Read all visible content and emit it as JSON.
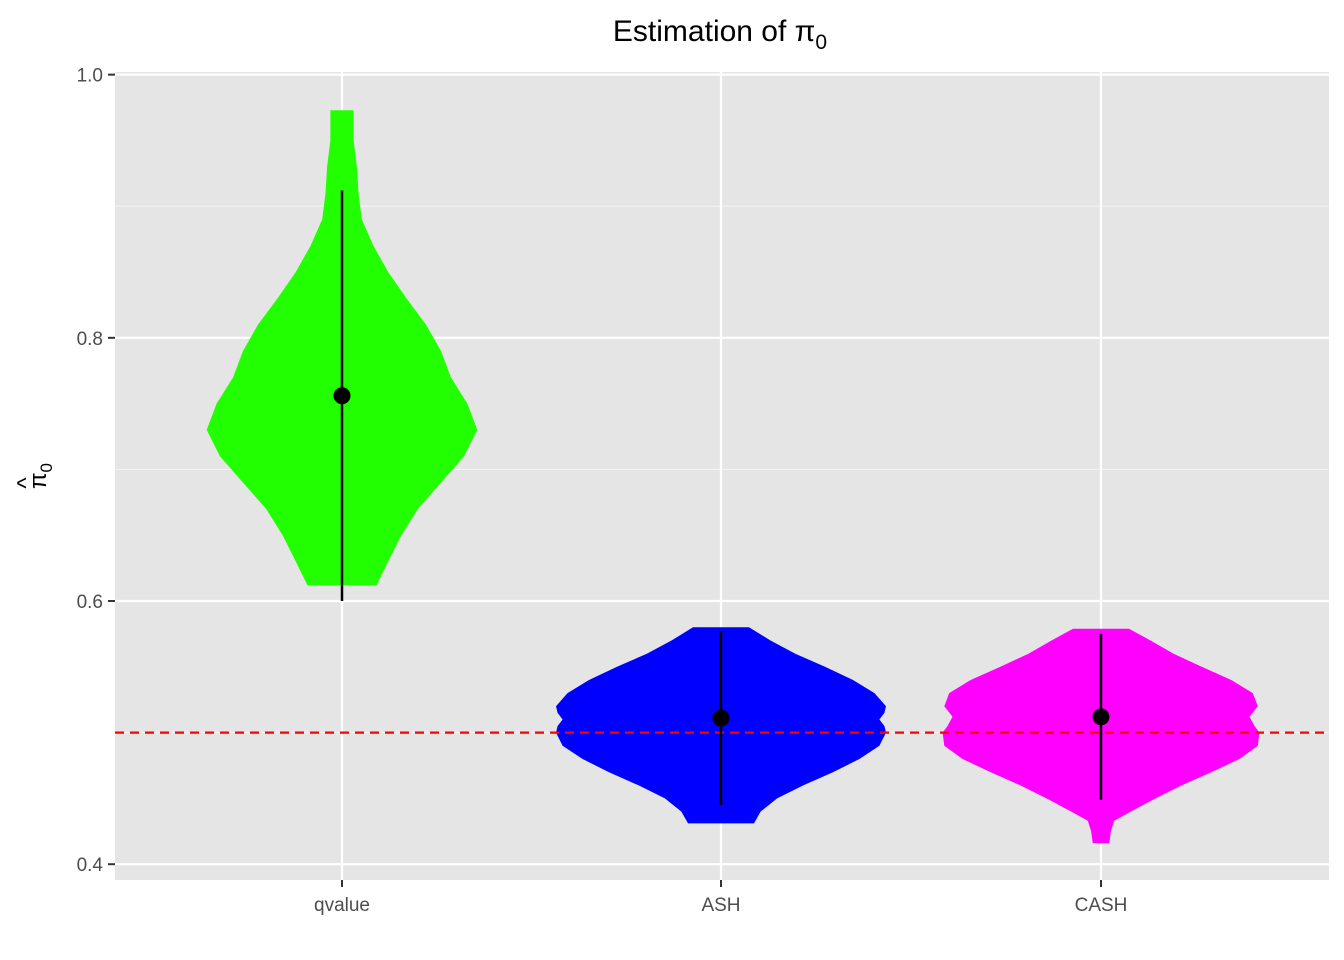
{
  "chart_data": {
    "type": "violin",
    "title": "Estimation of π",
    "title_subscript": "0",
    "xlabel": "",
    "ylabel": "π",
    "ylabel_hat": "^",
    "ylabel_subscript": "0",
    "ylim": [
      0.388,
      1.002
    ],
    "y_ticks": [
      0.4,
      0.6,
      0.8,
      1.0
    ],
    "y_tick_labels": [
      "0.4",
      "0.6",
      "0.8",
      "1.0"
    ],
    "y_minor_gridlines": [
      0.5,
      0.7,
      0.9
    ],
    "grid": true,
    "legend": "none",
    "categories": [
      "qvalue",
      "ASH",
      "CASH"
    ],
    "reference_line": {
      "y": 0.5,
      "color": "#ff0000",
      "style": "dashed"
    },
    "series": [
      {
        "name": "qvalue",
        "color": "#22ff00",
        "point": 0.756,
        "whisker": [
          0.6,
          0.912
        ],
        "density": [
          [
            0.612,
            0.21
          ],
          [
            0.63,
            0.28
          ],
          [
            0.65,
            0.36
          ],
          [
            0.67,
            0.46
          ],
          [
            0.69,
            0.6
          ],
          [
            0.71,
            0.74
          ],
          [
            0.73,
            0.82
          ],
          [
            0.75,
            0.76
          ],
          [
            0.77,
            0.66
          ],
          [
            0.79,
            0.6
          ],
          [
            0.81,
            0.51
          ],
          [
            0.83,
            0.39
          ],
          [
            0.85,
            0.28
          ],
          [
            0.87,
            0.19
          ],
          [
            0.89,
            0.12
          ],
          [
            0.91,
            0.1
          ],
          [
            0.93,
            0.09
          ],
          [
            0.95,
            0.07
          ],
          [
            0.973,
            0.07
          ]
        ]
      },
      {
        "name": "ASH",
        "color": "#0000ff",
        "point": 0.511,
        "whisker": [
          0.445,
          0.577
        ],
        "density": [
          [
            0.431,
            0.2
          ],
          [
            0.44,
            0.24
          ],
          [
            0.45,
            0.34
          ],
          [
            0.46,
            0.5
          ],
          [
            0.47,
            0.68
          ],
          [
            0.48,
            0.84
          ],
          [
            0.49,
            0.96
          ],
          [
            0.5,
            1.0
          ],
          [
            0.505,
            0.99
          ],
          [
            0.51,
            0.96
          ],
          [
            0.515,
            0.99
          ],
          [
            0.52,
            1.0
          ],
          [
            0.53,
            0.93
          ],
          [
            0.54,
            0.8
          ],
          [
            0.55,
            0.63
          ],
          [
            0.56,
            0.45
          ],
          [
            0.57,
            0.3
          ],
          [
            0.58,
            0.17
          ]
        ]
      },
      {
        "name": "CASH",
        "color": "#ff00ff",
        "point": 0.512,
        "whisker": [
          0.449,
          0.575
        ],
        "density": [
          [
            0.416,
            0.05
          ],
          [
            0.425,
            0.06
          ],
          [
            0.433,
            0.08
          ],
          [
            0.44,
            0.18
          ],
          [
            0.45,
            0.33
          ],
          [
            0.46,
            0.49
          ],
          [
            0.47,
            0.67
          ],
          [
            0.48,
            0.84
          ],
          [
            0.49,
            0.95
          ],
          [
            0.5,
            0.96
          ],
          [
            0.505,
            0.93
          ],
          [
            0.512,
            0.9
          ],
          [
            0.52,
            0.95
          ],
          [
            0.53,
            0.92
          ],
          [
            0.54,
            0.79
          ],
          [
            0.55,
            0.61
          ],
          [
            0.56,
            0.44
          ],
          [
            0.57,
            0.3
          ],
          [
            0.579,
            0.17
          ]
        ]
      }
    ]
  }
}
